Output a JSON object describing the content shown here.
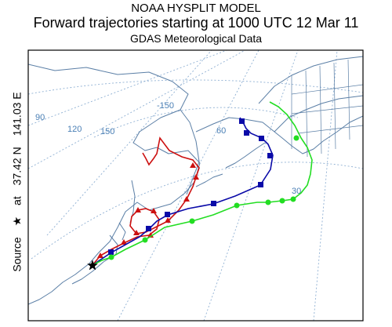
{
  "header": {
    "model": "NOAA HYSPLIT MODEL",
    "subtitle": "Forward trajectories starting at 1000 UTC 12 Mar 11",
    "data_source": "GDAS Meteorological Data"
  },
  "source": {
    "label": "Source",
    "symbol": "★",
    "at": "at",
    "lat": "37.42 N",
    "lon": "141.03 E"
  },
  "grid_labels": {
    "lon_150w": "-150",
    "lon_90": "90",
    "lon_120": "120",
    "lon_150": "150",
    "lat_60": "60",
    "lat_30": "30"
  },
  "colors": {
    "coastline": "#5b7fa6",
    "grid": "#8fb0d3",
    "frame": "#000000",
    "trajectory_red": "#cc1010",
    "trajectory_blue": "#0a0aa8",
    "trajectory_green": "#22dd22"
  },
  "trajectories": [
    {
      "color": "red",
      "marker": "triangle"
    },
    {
      "color": "blue",
      "marker": "square"
    },
    {
      "color": "green",
      "marker": "circle"
    }
  ]
}
